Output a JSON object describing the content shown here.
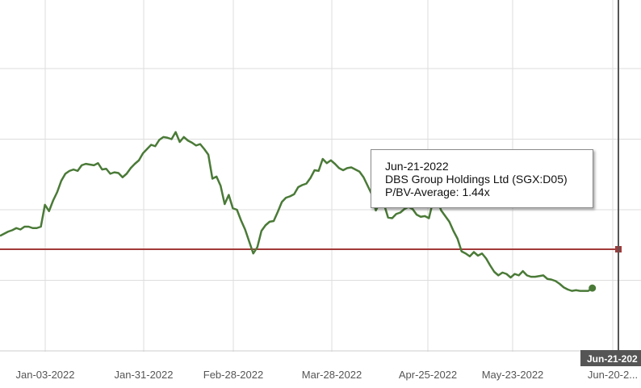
{
  "chart_data": {
    "type": "line",
    "x_tick_labels": [
      "Jan-03-2022",
      "Jan-31-2022",
      "Feb-28-2022",
      "Mar-28-2022",
      "Apr-25-2022",
      "May-23-2022",
      "Jun-20-2..."
    ],
    "series": [
      {
        "color": "#4a7a37",
        "values": [
          1.63,
          1.66,
          1.69,
          1.71,
          1.74,
          1.72,
          1.76,
          1.76,
          1.74,
          1.74,
          1.76,
          2.07,
          1.98,
          2.13,
          2.25,
          2.41,
          2.51,
          2.55,
          2.57,
          2.55,
          2.63,
          2.65,
          2.64,
          2.63,
          2.66,
          2.57,
          2.58,
          2.51,
          2.53,
          2.52,
          2.46,
          2.51,
          2.59,
          2.65,
          2.7,
          2.8,
          2.86,
          2.92,
          2.9,
          2.99,
          3.03,
          3.02,
          3.0,
          3.1,
          2.96,
          3.03,
          2.98,
          2.95,
          2.91,
          2.93,
          2.86,
          2.78,
          2.44,
          2.47,
          2.34,
          2.08,
          2.21,
          2.02,
          2.0,
          1.85,
          1.72,
          1.55,
          1.38,
          1.47,
          1.7,
          1.78,
          1.83,
          1.84,
          1.97,
          2.11,
          2.17,
          2.19,
          2.22,
          2.32,
          2.35,
          2.37,
          2.45,
          2.56,
          2.55,
          2.72,
          2.66,
          2.7,
          2.65,
          2.59,
          2.56,
          2.59,
          2.6,
          2.57,
          2.54,
          2.46,
          2.34,
          2.22,
          1.99,
          2.1,
          2.08,
          1.89,
          1.88,
          1.94,
          1.96,
          2.01,
          2.04,
          2.01,
          1.93,
          1.9,
          1.91,
          1.88,
          2.12,
          2.14,
          1.99,
          1.91,
          1.83,
          1.7,
          1.59,
          1.41,
          1.38,
          1.34,
          1.4,
          1.35,
          1.38,
          1.31,
          1.21,
          1.12,
          1.07,
          1.11,
          1.09,
          1.04,
          1.09,
          1.07,
          1.13,
          1.07,
          1.05,
          1.05,
          1.06,
          1.07,
          1.02,
          1.01,
          0.99,
          0.95,
          0.9,
          0.87,
          0.85,
          0.86,
          0.85,
          0.85,
          0.85,
          0.89
        ]
      },
      {
        "color": "#a23a3a",
        "values": [
          1.44
        ]
      }
    ],
    "n_points": 152,
    "grid": true,
    "legend": "none"
  },
  "crosshair": {
    "date_label": "Jun-21-202",
    "color": "#555555"
  },
  "tooltip": {
    "date": "Jun-21-2022",
    "company": "DBS Group Holdings Ltd (SGX:D05)",
    "metric": "P/BV-Average: 1.44x"
  }
}
